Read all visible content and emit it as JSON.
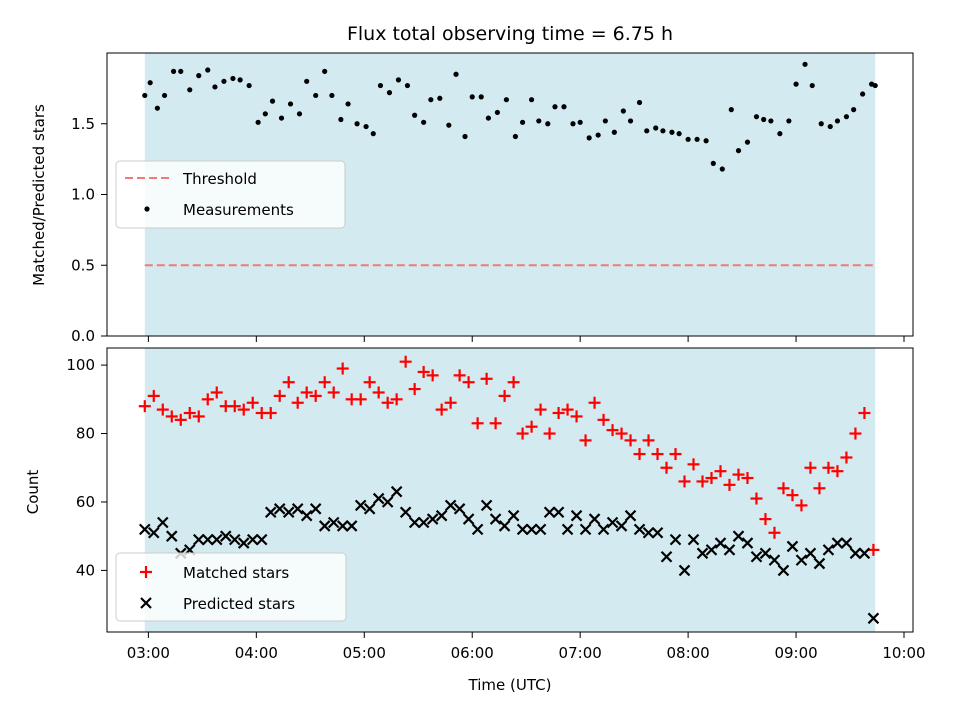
{
  "chart_data": [
    {
      "type": "scatter",
      "title": "Flux total observing time = 6.75 h",
      "ylabel": "Matched/Predicted stars",
      "ylim": [
        0,
        2.0
      ],
      "yticks": [
        0.0,
        0.5,
        1.0,
        1.5
      ],
      "ytick_labels": [
        "0.0",
        "0.5",
        "1.0",
        "1.5"
      ],
      "observing_window": [
        "02:58",
        "09:44"
      ],
      "shade_color": "#d3eaf0",
      "legend": [
        {
          "label": "Threshold",
          "style": "dashed-line",
          "color": "#f07a7a"
        },
        {
          "label": "Measurements",
          "style": "dot",
          "color": "#000000"
        }
      ],
      "series": [
        {
          "name": "Threshold",
          "kind": "hline",
          "value": 0.5,
          "color": "#f07a7a"
        },
        {
          "name": "Measurements",
          "kind": "points",
          "color": "#000000",
          "x": [
            "02:58",
            "03:01",
            "03:05",
            "03:09",
            "03:14",
            "03:18",
            "03:23",
            "03:28",
            "03:33",
            "03:37",
            "03:42",
            "03:47",
            "03:51",
            "03:56",
            "04:01",
            "04:05",
            "04:09",
            "04:14",
            "04:19",
            "04:24",
            "04:28",
            "04:33",
            "04:38",
            "04:42",
            "04:47",
            "04:51",
            "04:56",
            "05:01",
            "05:05",
            "05:09",
            "05:14",
            "05:19",
            "05:24",
            "05:28",
            "05:33",
            "05:37",
            "05:42",
            "05:47",
            "05:51",
            "05:56",
            "06:00",
            "06:05",
            "06:09",
            "06:14",
            "06:19",
            "06:24",
            "06:28",
            "06:33",
            "06:37",
            "06:42",
            "06:46",
            "06:51",
            "06:56",
            "07:00",
            "07:05",
            "07:10",
            "07:14",
            "07:19",
            "07:24",
            "07:28",
            "07:33",
            "07:37",
            "07:42",
            "07:46",
            "07:51",
            "07:55",
            "08:00",
            "08:05",
            "08:10",
            "08:14",
            "08:19",
            "08:24",
            "08:28",
            "08:33",
            "08:38",
            "08:42",
            "08:46",
            "08:51",
            "08:56",
            "09:00",
            "09:05",
            "09:09",
            "09:14",
            "09:19",
            "09:23",
            "09:28",
            "09:32",
            "09:37",
            "09:42",
            "09:44"
          ],
          "y": [
            1.7,
            1.79,
            1.61,
            1.7,
            1.87,
            1.87,
            1.74,
            1.84,
            1.88,
            1.76,
            1.8,
            1.82,
            1.81,
            1.77,
            1.51,
            1.57,
            1.66,
            1.54,
            1.64,
            1.57,
            1.8,
            1.7,
            1.87,
            1.7,
            1.53,
            1.64,
            1.5,
            1.48,
            1.43,
            1.77,
            1.72,
            1.81,
            1.77,
            1.56,
            1.51,
            1.67,
            1.68,
            1.49,
            1.85,
            1.41,
            1.69,
            1.69,
            1.54,
            1.58,
            1.67,
            1.41,
            1.51,
            1.67,
            1.52,
            1.5,
            1.62,
            1.62,
            1.5,
            1.51,
            1.4,
            1.42,
            1.52,
            1.44,
            1.59,
            1.52,
            1.65,
            1.45,
            1.47,
            1.45,
            1.44,
            1.43,
            1.39,
            1.39,
            1.38,
            1.22,
            1.18,
            1.6,
            1.31,
            1.37,
            1.55,
            1.53,
            1.52,
            1.43,
            1.52,
            1.78,
            1.92,
            1.77,
            1.5,
            1.48,
            1.52,
            1.55,
            1.6,
            1.71,
            1.78,
            1.77
          ]
        }
      ]
    },
    {
      "type": "scatter",
      "xlabel": "Time (UTC)",
      "ylabel": "Count",
      "ylim": [
        22,
        105
      ],
      "yticks": [
        40,
        60,
        80,
        100
      ],
      "ytick_labels": [
        "40",
        "60",
        "80",
        "100"
      ],
      "xlim": [
        "02:37",
        "10:05"
      ],
      "xticks": [
        "03:00",
        "04:00",
        "05:00",
        "06:00",
        "07:00",
        "08:00",
        "09:00",
        "10:00"
      ],
      "observing_window": [
        "02:58",
        "09:44"
      ],
      "shade_color": "#d3eaf0",
      "legend": [
        {
          "label": "Matched stars",
          "style": "plus",
          "color": "#ff0000"
        },
        {
          "label": "Predicted stars",
          "style": "x",
          "color": "#000000"
        }
      ],
      "series": [
        {
          "name": "Matched stars",
          "marker": "plus",
          "color": "#ff0000",
          "x": [
            "02:58",
            "03:03",
            "03:08",
            "03:13",
            "03:18",
            "03:23",
            "03:28",
            "03:33",
            "03:38",
            "03:43",
            "03:48",
            "03:53",
            "03:58",
            "04:03",
            "04:08",
            "04:13",
            "04:18",
            "04:23",
            "04:28",
            "04:33",
            "04:38",
            "04:43",
            "04:48",
            "04:53",
            "04:58",
            "05:03",
            "05:08",
            "05:13",
            "05:18",
            "05:23",
            "05:28",
            "05:33",
            "05:38",
            "05:43",
            "05:48",
            "05:53",
            "05:58",
            "06:03",
            "06:08",
            "06:13",
            "06:18",
            "06:23",
            "06:28",
            "06:33",
            "06:38",
            "06:43",
            "06:48",
            "06:53",
            "06:58",
            "07:03",
            "07:08",
            "07:13",
            "07:18",
            "07:23",
            "07:28",
            "07:33",
            "07:38",
            "07:43",
            "07:48",
            "07:53",
            "07:58",
            "08:03",
            "08:08",
            "08:13",
            "08:18",
            "08:23",
            "08:28",
            "08:33",
            "08:38",
            "08:43",
            "08:48",
            "08:53",
            "08:58",
            "09:03",
            "09:08",
            "09:13",
            "09:18",
            "09:23",
            "09:28",
            "09:33",
            "09:38",
            "09:43"
          ],
          "y": [
            88,
            91,
            87,
            85,
            84,
            86,
            85,
            90,
            92,
            88,
            88,
            87,
            89,
            86,
            86,
            91,
            95,
            89,
            92,
            91,
            95,
            92,
            99,
            90,
            90,
            95,
            92,
            89,
            90,
            101,
            93,
            98,
            97,
            87,
            89,
            97,
            95,
            83,
            96,
            83,
            91,
            95,
            80,
            82,
            87,
            80,
            86,
            87,
            85,
            78,
            89,
            84,
            81,
            80,
            78,
            74,
            78,
            74,
            70,
            74,
            66,
            71,
            66,
            67,
            69,
            65,
            68,
            67,
            61,
            55,
            51,
            64,
            62,
            59,
            70,
            64,
            70,
            69,
            73,
            80,
            86,
            46
          ]
        },
        {
          "name": "Predicted stars",
          "marker": "x",
          "color": "#000000",
          "x": [
            "02:58",
            "03:03",
            "03:08",
            "03:13",
            "03:18",
            "03:23",
            "03:28",
            "03:33",
            "03:38",
            "03:43",
            "03:48",
            "03:53",
            "03:58",
            "04:03",
            "04:08",
            "04:13",
            "04:18",
            "04:23",
            "04:28",
            "04:33",
            "04:38",
            "04:43",
            "04:48",
            "04:53",
            "04:58",
            "05:03",
            "05:08",
            "05:13",
            "05:18",
            "05:23",
            "05:28",
            "05:33",
            "05:38",
            "05:43",
            "05:48",
            "05:53",
            "05:58",
            "06:03",
            "06:08",
            "06:13",
            "06:18",
            "06:23",
            "06:28",
            "06:33",
            "06:38",
            "06:43",
            "06:48",
            "06:53",
            "06:58",
            "07:03",
            "07:08",
            "07:13",
            "07:18",
            "07:23",
            "07:28",
            "07:33",
            "07:38",
            "07:43",
            "07:48",
            "07:53",
            "07:58",
            "08:03",
            "08:08",
            "08:13",
            "08:18",
            "08:23",
            "08:28",
            "08:33",
            "08:38",
            "08:43",
            "08:48",
            "08:53",
            "08:58",
            "09:03",
            "09:08",
            "09:13",
            "09:18",
            "09:23",
            "09:28",
            "09:33",
            "09:38",
            "09:43"
          ],
          "y": [
            52,
            51,
            54,
            50,
            45,
            46,
            49,
            49,
            49,
            50,
            49,
            48,
            49,
            49,
            57,
            58,
            57,
            58,
            56,
            58,
            53,
            54,
            53,
            53,
            59,
            58,
            61,
            60,
            63,
            57,
            54,
            54,
            55,
            56,
            59,
            58,
            55,
            52,
            59,
            55,
            53,
            56,
            52,
            52,
            52,
            57,
            57,
            52,
            56,
            52,
            55,
            52,
            54,
            53,
            56,
            52,
            51,
            51,
            44,
            49,
            40,
            49,
            45,
            46,
            48,
            46,
            50,
            48,
            44,
            45,
            43,
            40,
            47,
            43,
            45,
            42,
            46,
            48,
            48,
            45,
            45,
            26
          ]
        }
      ]
    }
  ]
}
